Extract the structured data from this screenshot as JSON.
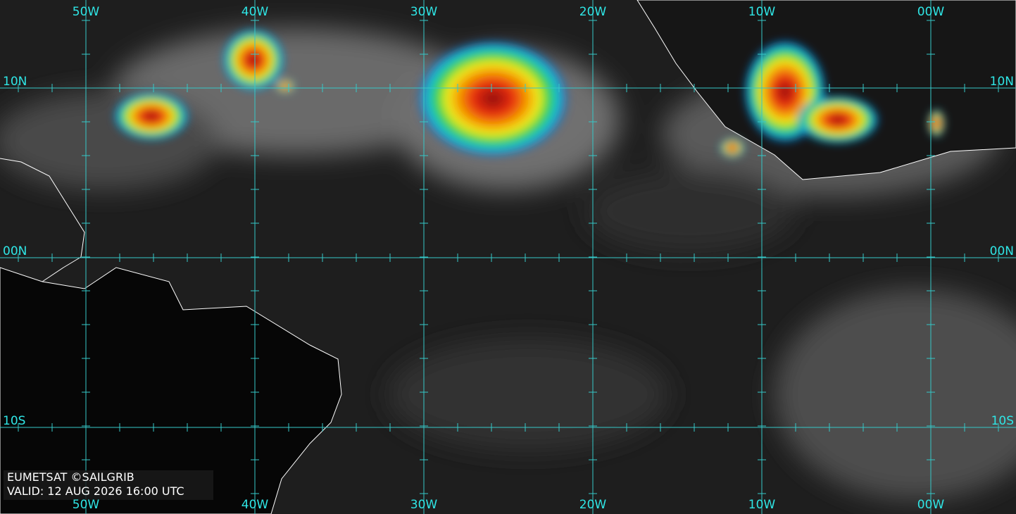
{
  "map": {
    "longitude_labels": [
      "50W",
      "40W",
      "30W",
      "20W",
      "10W",
      "00W"
    ],
    "latitude_labels": [
      "10N",
      "00N",
      "10S"
    ]
  },
  "credit": "EUMETSAT ©SAILGRIB",
  "valid": "VALID:  12 AUG 2026 16:00 UTC"
}
